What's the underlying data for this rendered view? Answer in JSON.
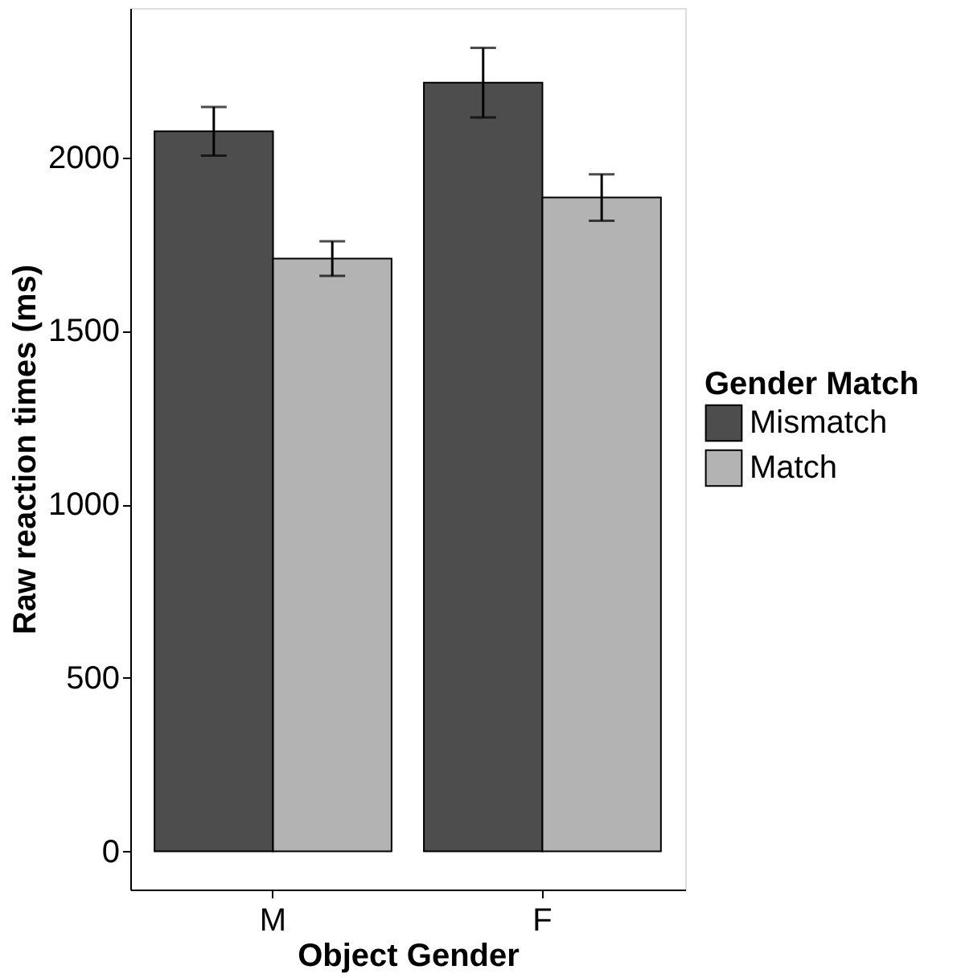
{
  "chart_data": {
    "type": "bar",
    "xlabel": "Object Gender",
    "ylabel": "Raw reaction times (ms)",
    "legend_title": "Gender Match",
    "categories": [
      "M",
      "F"
    ],
    "series": [
      {
        "name": "Mismatch",
        "color": "#4d4d4d",
        "values": [
          2075,
          2215
        ],
        "errors": [
          70,
          100
        ]
      },
      {
        "name": "Match",
        "color": "#b3b3b3",
        "values": [
          1708,
          1884
        ],
        "errors": [
          50,
          67
        ]
      }
    ],
    "ylim": [
      -110,
      2430
    ],
    "yticks": [
      0,
      500,
      1000,
      1500,
      2000
    ],
    "grid": false,
    "legend": "right"
  }
}
